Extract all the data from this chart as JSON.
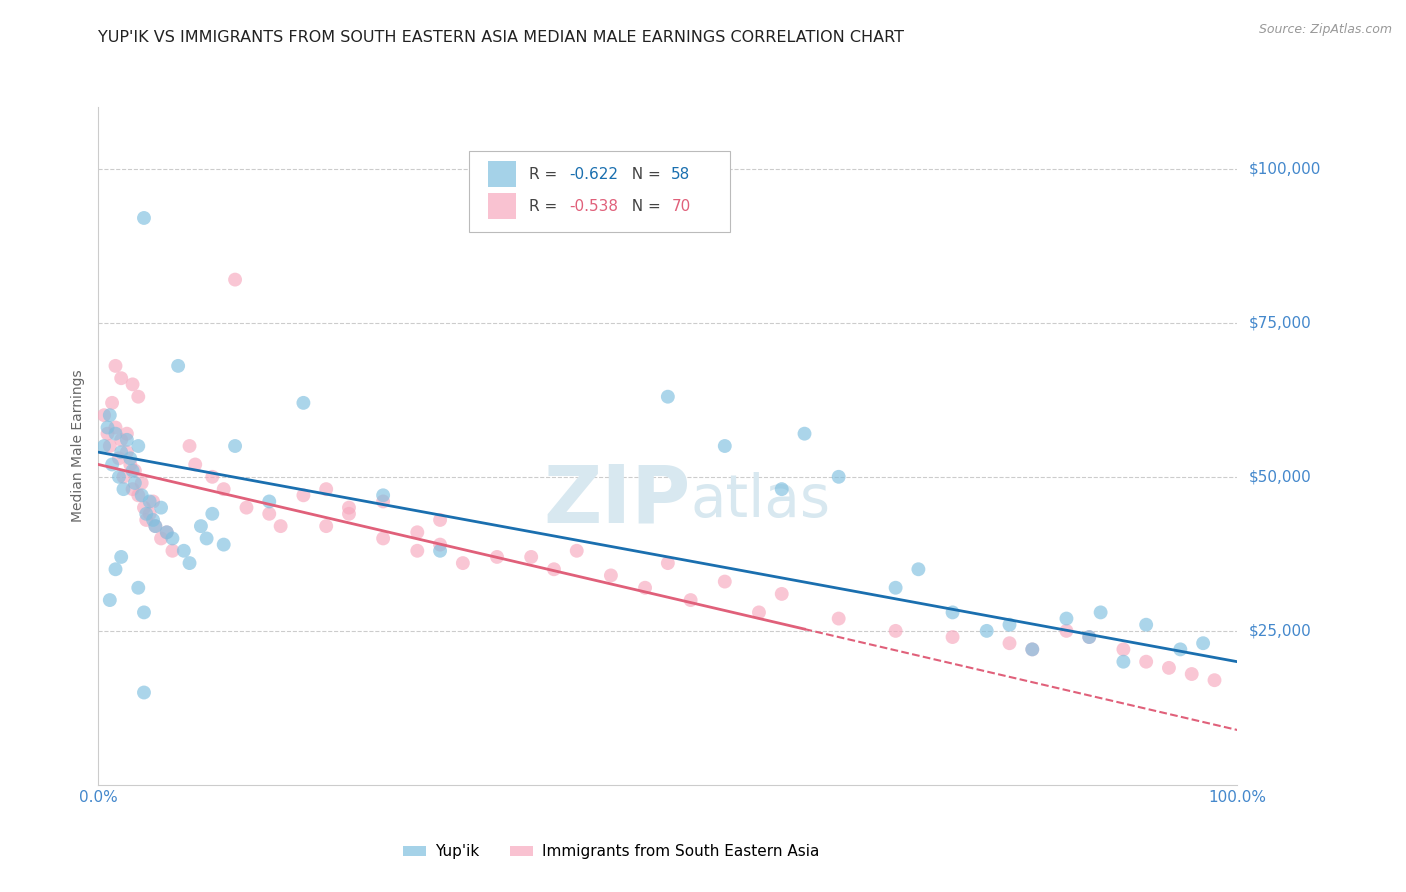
{
  "title": "YUP'IK VS IMMIGRANTS FROM SOUTH EASTERN ASIA MEDIAN MALE EARNINGS CORRELATION CHART",
  "source": "Source: ZipAtlas.com",
  "ylabel": "Median Male Earnings",
  "xlim": [
    0,
    1.0
  ],
  "ylim": [
    0,
    110000
  ],
  "xtick_labels": [
    "0.0%",
    "100.0%"
  ],
  "ytick_labels": [
    "$25,000",
    "$50,000",
    "$75,000",
    "$100,000"
  ],
  "ytick_values": [
    25000,
    50000,
    75000,
    100000
  ],
  "legend_label_1": "Yup'ik",
  "legend_label_2": "Immigrants from South Eastern Asia",
  "r1": -0.622,
  "n1": 58,
  "r2": -0.538,
  "n2": 70,
  "color_blue": "#7fbfdf",
  "color_pink": "#f7a8be",
  "line_color_blue": "#1a6faf",
  "line_color_pink": "#e0607a",
  "background_color": "#ffffff",
  "watermark_color": "#d8e8f0",
  "title_fontsize": 11.5,
  "axis_label_color": "#4488cc",
  "watermark_fontsize": 58,
  "scatter_size": 100,
  "scatter_alpha": 0.65,
  "blue_x": [
    0.005,
    0.008,
    0.01,
    0.012,
    0.015,
    0.018,
    0.02,
    0.022,
    0.025,
    0.028,
    0.03,
    0.032,
    0.035,
    0.038,
    0.04,
    0.042,
    0.045,
    0.048,
    0.05,
    0.055,
    0.06,
    0.065,
    0.07,
    0.075,
    0.08,
    0.035,
    0.04,
    0.015,
    0.02,
    0.01,
    0.18,
    0.25,
    0.3,
    0.12,
    0.15,
    0.09,
    0.095,
    0.1,
    0.11,
    0.5,
    0.55,
    0.6,
    0.62,
    0.65,
    0.7,
    0.72,
    0.75,
    0.78,
    0.8,
    0.82,
    0.85,
    0.87,
    0.88,
    0.9,
    0.92,
    0.95,
    0.97,
    0.04
  ],
  "blue_y": [
    55000,
    58000,
    60000,
    52000,
    57000,
    50000,
    54000,
    48000,
    56000,
    53000,
    51000,
    49000,
    55000,
    47000,
    92000,
    44000,
    46000,
    43000,
    42000,
    45000,
    41000,
    40000,
    68000,
    38000,
    36000,
    32000,
    28000,
    35000,
    37000,
    30000,
    62000,
    47000,
    38000,
    55000,
    46000,
    42000,
    40000,
    44000,
    39000,
    63000,
    55000,
    48000,
    57000,
    50000,
    32000,
    35000,
    28000,
    25000,
    26000,
    22000,
    27000,
    24000,
    28000,
    20000,
    26000,
    22000,
    23000,
    15000
  ],
  "pink_x": [
    0.005,
    0.008,
    0.01,
    0.012,
    0.015,
    0.018,
    0.02,
    0.022,
    0.025,
    0.028,
    0.03,
    0.032,
    0.035,
    0.038,
    0.04,
    0.042,
    0.045,
    0.048,
    0.05,
    0.055,
    0.06,
    0.065,
    0.12,
    0.08,
    0.085,
    0.03,
    0.035,
    0.015,
    0.02,
    0.15,
    0.18,
    0.2,
    0.22,
    0.25,
    0.28,
    0.3,
    0.32,
    0.35,
    0.2,
    0.22,
    0.25,
    0.28,
    0.3,
    0.1,
    0.11,
    0.13,
    0.16,
    0.38,
    0.4,
    0.42,
    0.45,
    0.48,
    0.5,
    0.52,
    0.55,
    0.58,
    0.6,
    0.65,
    0.7,
    0.75,
    0.8,
    0.82,
    0.85,
    0.87,
    0.9,
    0.92,
    0.94,
    0.96,
    0.98,
    0.025
  ],
  "pink_y": [
    60000,
    57000,
    55000,
    62000,
    58000,
    53000,
    56000,
    50000,
    54000,
    52000,
    48000,
    51000,
    47000,
    49000,
    45000,
    43000,
    44000,
    46000,
    42000,
    40000,
    41000,
    38000,
    82000,
    55000,
    52000,
    65000,
    63000,
    68000,
    66000,
    44000,
    47000,
    42000,
    45000,
    40000,
    38000,
    43000,
    36000,
    37000,
    48000,
    44000,
    46000,
    41000,
    39000,
    50000,
    48000,
    45000,
    42000,
    37000,
    35000,
    38000,
    34000,
    32000,
    36000,
    30000,
    33000,
    28000,
    31000,
    27000,
    25000,
    24000,
    23000,
    22000,
    25000,
    24000,
    22000,
    20000,
    19000,
    18000,
    17000,
    57000
  ]
}
